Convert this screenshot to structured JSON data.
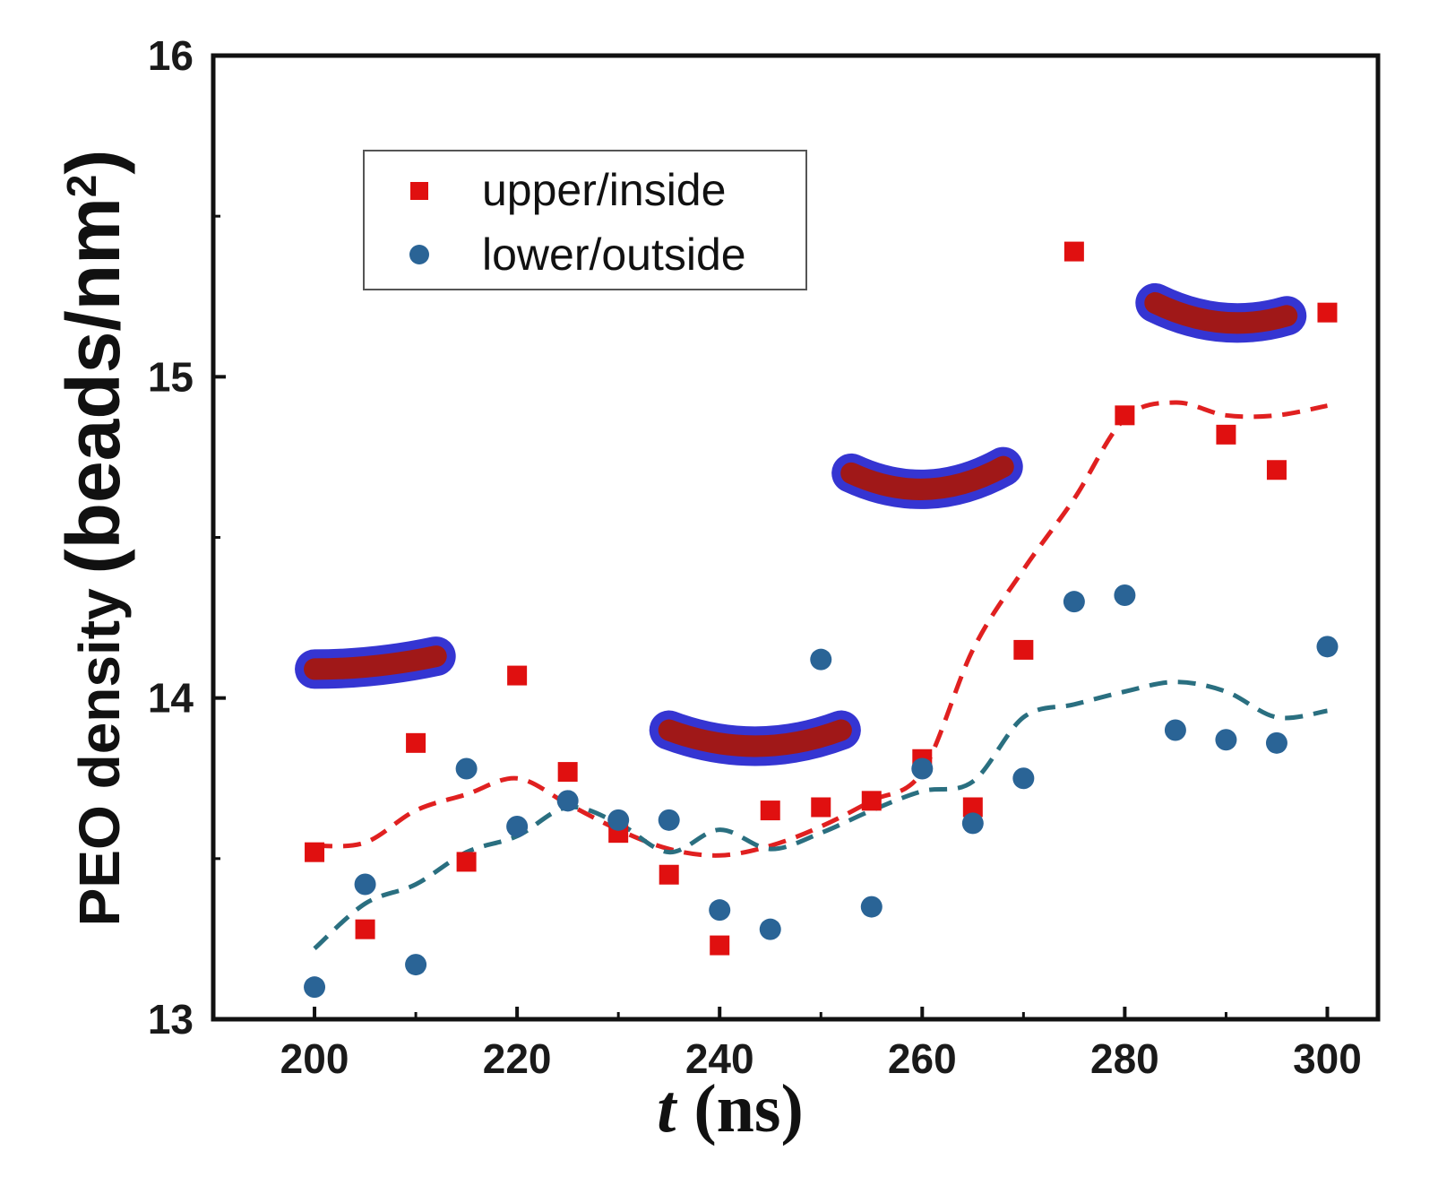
{
  "chart_data": {
    "type": "scatter",
    "title": "",
    "xlabel_italic": "t",
    "xlabel_unit": "(ns)",
    "ylabel": "PEO density",
    "ylabel_unit": "(beads/nm",
    "ylabel_unit_sup": "2",
    "ylabel_unit_close": ")",
    "xlim": [
      190,
      305
    ],
    "ylim": [
      13,
      16
    ],
    "xticks": [
      200,
      220,
      240,
      260,
      280,
      300
    ],
    "xtick_labels": [
      "200",
      "220",
      "240",
      "260",
      "280",
      "300"
    ],
    "yticks": [
      13,
      14,
      15,
      16
    ],
    "ytick_labels": [
      "13",
      "14",
      "15",
      "16"
    ],
    "legend_position": "upper-left",
    "series": [
      {
        "name": "upper/inside",
        "marker": "square",
        "color": "#e01010",
        "x": [
          200,
          205,
          210,
          215,
          220,
          225,
          230,
          235,
          240,
          245,
          250,
          255,
          260,
          265,
          270,
          275,
          280,
          290,
          295,
          300
        ],
        "y": [
          13.52,
          13.28,
          13.86,
          13.49,
          14.07,
          13.77,
          13.58,
          13.45,
          13.23,
          13.65,
          13.66,
          13.68,
          13.81,
          13.66,
          14.15,
          15.39,
          14.88,
          14.82,
          14.71,
          15.2
        ]
      },
      {
        "name": "lower/outside",
        "marker": "circle",
        "color": "#2a6496",
        "x": [
          200,
          205,
          210,
          215,
          220,
          225,
          230,
          235,
          240,
          245,
          250,
          255,
          260,
          265,
          270,
          275,
          280,
          285,
          290,
          295,
          300
        ],
        "y": [
          13.1,
          13.42,
          13.17,
          13.78,
          13.6,
          13.68,
          13.62,
          13.62,
          13.34,
          13.28,
          14.12,
          13.35,
          13.78,
          13.61,
          13.75,
          14.3,
          14.32,
          13.9,
          13.87,
          13.86,
          14.16
        ]
      }
    ],
    "trend_lines": [
      {
        "name": "upper/inside trend",
        "color": "#e02020",
        "style": "dashed",
        "x": [
          200,
          205,
          210,
          215,
          220,
          225,
          230,
          235,
          240,
          245,
          250,
          255,
          260,
          265,
          270,
          275,
          280,
          285,
          290,
          295,
          300
        ],
        "y": [
          13.54,
          13.55,
          13.65,
          13.7,
          13.75,
          13.67,
          13.59,
          13.53,
          13.51,
          13.54,
          13.6,
          13.68,
          13.77,
          14.15,
          14.4,
          14.62,
          14.87,
          14.92,
          14.88,
          14.88,
          14.91
        ]
      },
      {
        "name": "lower/outside trend",
        "color": "#2a6f80",
        "style": "dashed",
        "x": [
          200,
          205,
          210,
          215,
          220,
          225,
          230,
          235,
          240,
          245,
          250,
          255,
          260,
          265,
          270,
          275,
          280,
          285,
          290,
          295,
          300
        ],
        "y": [
          13.22,
          13.36,
          13.42,
          13.52,
          13.57,
          13.66,
          13.61,
          13.52,
          13.59,
          13.53,
          13.58,
          13.65,
          13.71,
          13.74,
          13.94,
          13.98,
          14.02,
          14.05,
          14.02,
          13.94,
          13.96
        ]
      }
    ],
    "highlight_arcs": [
      {
        "x_start": 200,
        "x_end": 212,
        "y": [
          14.09,
          14.1,
          14.13
        ],
        "fill": "#a01818",
        "halo": "#2a2ad0"
      },
      {
        "x_start": 235,
        "x_end": 252,
        "y": [
          13.9,
          13.85,
          13.9
        ],
        "fill": "#a01818",
        "halo": "#2a2ad0"
      },
      {
        "x_start": 253,
        "x_end": 268,
        "y": [
          14.7,
          14.65,
          14.72
        ],
        "fill": "#a01818",
        "halo": "#2a2ad0"
      },
      {
        "x_start": 283,
        "x_end": 296,
        "y": [
          15.23,
          15.17,
          15.19
        ],
        "fill": "#a01818",
        "halo": "#2a2ad0"
      }
    ]
  }
}
